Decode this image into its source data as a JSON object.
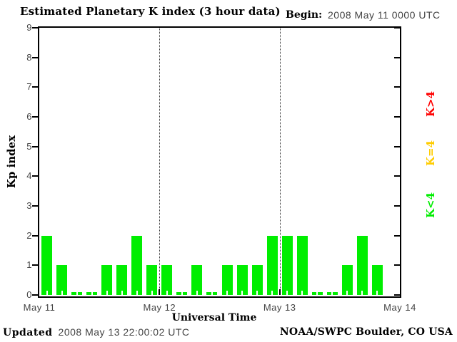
{
  "header": {
    "title": "Estimated Planetary K index (3 hour data)",
    "begin_label": "Begin:",
    "begin_value": "2008 May 11 0000 UTC"
  },
  "footer": {
    "updated_label": "Updated",
    "updated_value": "2008 May 13 22:00:02 UTC",
    "source": "NOAA/SWPC Boulder, CO USA"
  },
  "chart_data": {
    "type": "bar",
    "title": "Estimated Planetary K index (3 hour data)",
    "xlabel": "Universal Time",
    "ylabel": "Kp index",
    "ylim": [
      0,
      9
    ],
    "y_ticks": [
      "0",
      "1",
      "2",
      "3",
      "4",
      "5",
      "6",
      "7",
      "8",
      "9"
    ],
    "x_tick_labels": [
      "May 11",
      "May 12",
      "May 13",
      "May 14"
    ],
    "start": "2008 May 11 0000 UTC",
    "interval_hours": 3,
    "slots_per_day": 8,
    "days": 3,
    "values": [
      2,
      1,
      0,
      0,
      1,
      1,
      2,
      1,
      1,
      0,
      1,
      0,
      1,
      1,
      1,
      2,
      2,
      2,
      0,
      0,
      1,
      2,
      1
    ],
    "values_by_day": {
      "May 11": [
        2,
        1,
        0,
        0,
        1,
        1,
        2,
        1
      ],
      "May 12": [
        1,
        0,
        1,
        0,
        1,
        1,
        1,
        2
      ],
      "May 13": [
        2,
        2,
        0,
        0,
        1,
        2,
        1
      ]
    },
    "grid": "dotted vertical lines at day boundaries",
    "legend_position": "right, rotated 90deg",
    "legend": [
      {
        "label": "K>4",
        "color": "#ff0000"
      },
      {
        "label": "K=4",
        "color": "#ffcc00"
      },
      {
        "label": "K<4",
        "color": "#00ee00"
      }
    ],
    "colors": {
      "bar": "#00ee00",
      "axis": "#000000"
    }
  }
}
